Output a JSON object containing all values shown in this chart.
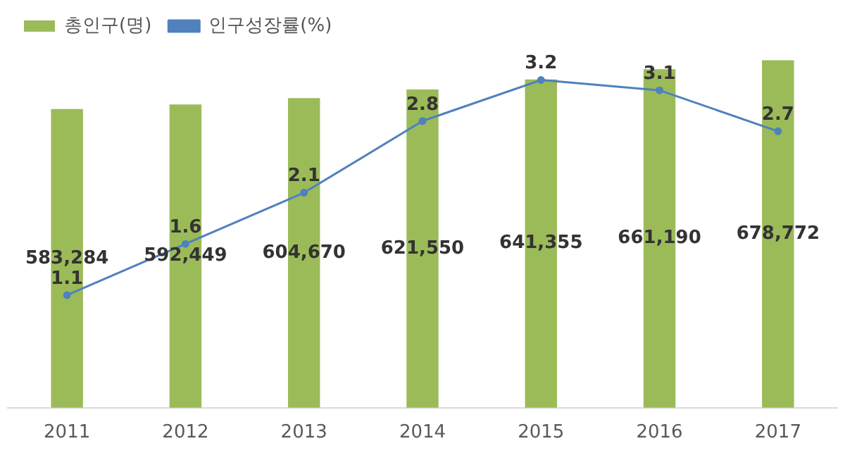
{
  "chart_data": {
    "type": "bar",
    "categories": [
      "2011",
      "2012",
      "2013",
      "2014",
      "2015",
      "2016",
      "2017"
    ],
    "series": [
      {
        "name": "총인구(명)",
        "color": "#9bbb59",
        "values": [
          583284,
          592449,
          604670,
          621550,
          641355,
          661190,
          678772
        ],
        "value_labels": [
          "583,284",
          "592,449",
          "604,670",
          "621,550",
          "641,355",
          "661,190",
          "678,772"
        ]
      },
      {
        "name": "인구성장률(%)",
        "type": "line",
        "axis": "y2",
        "color": "#4f81bd",
        "values": [
          1.1,
          1.6,
          2.1,
          2.8,
          3.2,
          3.1,
          2.7
        ],
        "value_labels": [
          "1.1",
          "1.6",
          "2.1",
          "2.8",
          "3.2",
          "3.1",
          "2.7"
        ]
      }
    ],
    "tick_labels": "x",
    "legend": "top left",
    "grid": false,
    "marker": "circle",
    "line_style": "solid"
  }
}
